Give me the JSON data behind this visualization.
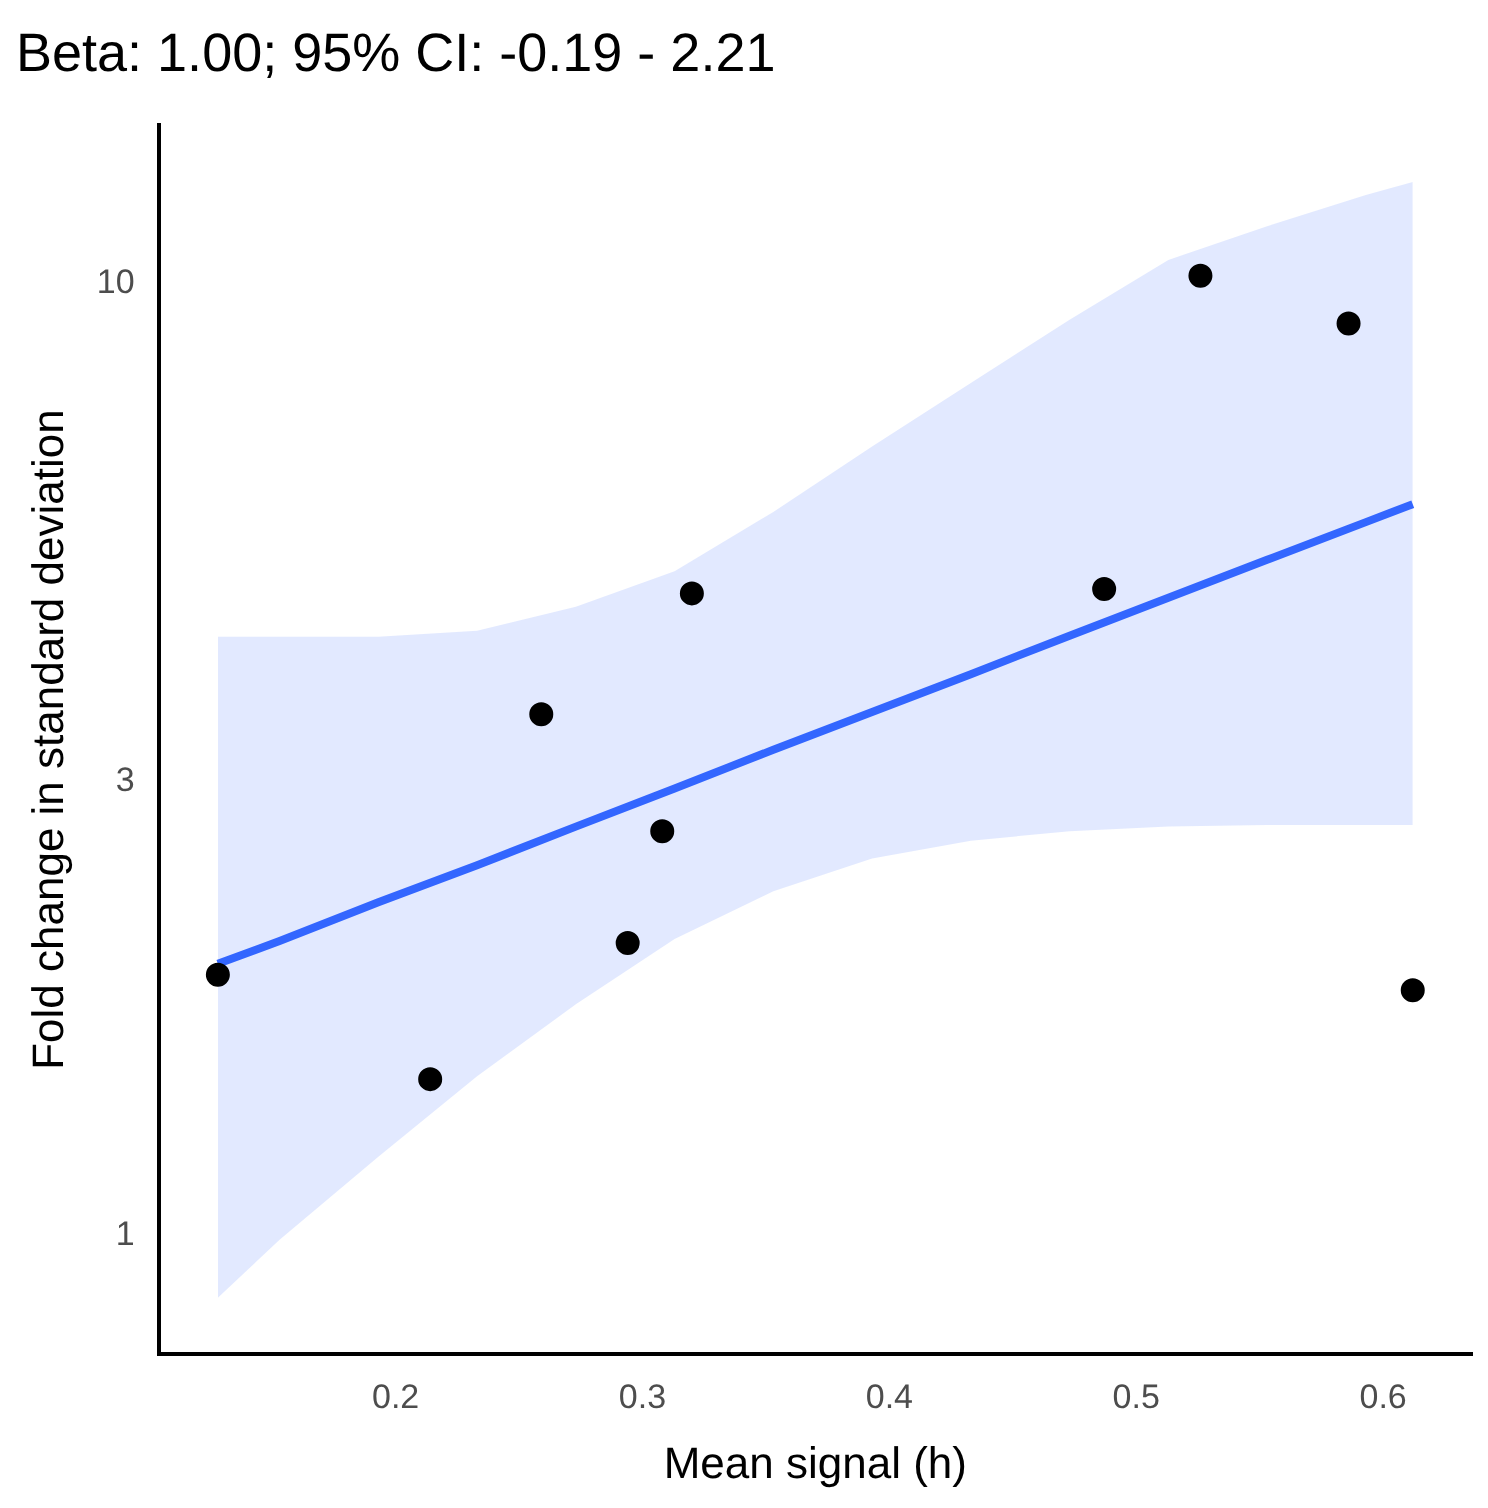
{
  "chart_data": {
    "type": "scatter",
    "title": "Beta: 1.00; 95% CI: -0.19 - 2.21",
    "xlabel": "Mean signal (h)",
    "ylabel": "Fold change in standard deviation",
    "log": "y",
    "grid": false,
    "legend": false,
    "marker": "circle",
    "xlim": [
      0.104,
      0.636
    ],
    "xticks": [
      0.2,
      0.3,
      0.4,
      0.5,
      0.6
    ],
    "ylim": [
      0.75,
      14.7
    ],
    "yticks": [
      1,
      3,
      10
    ],
    "series": [
      {
        "type": "line",
        "marker": "none",
        "color": "#3366ff",
        "x": [
          0.128,
          0.153,
          0.193,
          0.233,
          0.273,
          0.313,
          0.353,
          0.393,
          0.433,
          0.473,
          0.513,
          0.553,
          0.593,
          0.612
        ],
        "values": [
          1.93,
          2.04,
          2.24,
          2.45,
          2.69,
          2.95,
          3.24,
          3.55,
          3.89,
          4.27,
          4.68,
          5.13,
          5.62,
          5.87
        ],
        "lower": [
          0.86,
          0.99,
          1.21,
          1.47,
          1.75,
          2.05,
          2.3,
          2.49,
          2.6,
          2.66,
          2.69,
          2.7,
          2.7,
          2.7
        ],
        "upper": [
          4.26,
          4.26,
          4.26,
          4.32,
          4.58,
          4.99,
          5.76,
          6.75,
          7.87,
          9.17,
          10.6,
          11.5,
          12.4,
          12.8
        ]
      },
      {
        "color": "#000000",
        "x": [
          0.128,
          0.214,
          0.259,
          0.294,
          0.308,
          0.32,
          0.487,
          0.526,
          0.586,
          0.612
        ],
        "values": [
          1.88,
          1.46,
          3.53,
          2.03,
          2.66,
          4.73,
          4.78,
          10.2,
          9.09,
          1.81
        ]
      }
    ]
  }
}
